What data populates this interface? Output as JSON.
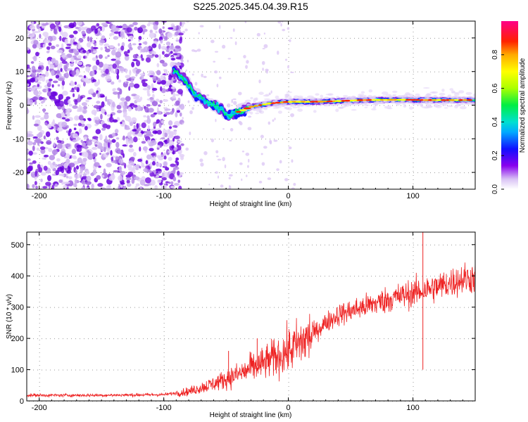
{
  "title": "S225.2025.345.04.39.R15",
  "colors": {
    "line": "#ee2222",
    "frame": "#000000",
    "grid_dot": "#999999"
  },
  "chart_data": [
    {
      "type": "heatmap",
      "xlabel": "Height of straight line (km)",
      "ylabel": "Frequency (Hz)",
      "xlim": [
        -210,
        150
      ],
      "ylim": [
        -25,
        25
      ],
      "xticks": [
        -200,
        -100,
        0,
        100
      ],
      "xtick_labels": [
        "-200",
        "-100",
        "0",
        "100"
      ],
      "yticks": [
        -20,
        -10,
        0,
        10,
        20
      ],
      "ytick_labels": [
        "-20",
        "-10",
        "0",
        "10",
        "20"
      ],
      "ridge": [
        {
          "x": -90,
          "y": 10
        },
        {
          "x": -82,
          "y": 7
        },
        {
          "x": -75,
          "y": 3
        },
        {
          "x": -65,
          "y": 1
        },
        {
          "x": -55,
          "y": -1
        },
        {
          "x": -48,
          "y": -3
        },
        {
          "x": -40,
          "y": -2
        },
        {
          "x": -30,
          "y": -0.5
        },
        {
          "x": -15,
          "y": 0.5
        },
        {
          "x": 0,
          "y": 1
        },
        {
          "x": 20,
          "y": 1
        },
        {
          "x": 40,
          "y": 1.2
        },
        {
          "x": 60,
          "y": 1.5
        },
        {
          "x": 90,
          "y": 1.6
        },
        {
          "x": 110,
          "y": 1.5
        },
        {
          "x": 150,
          "y": 1.5
        }
      ],
      "colorbar": {
        "label": "Normalized spectral amplitude",
        "range": [
          0,
          1
        ],
        "ticks": [
          0.0,
          0.2,
          0.4,
          0.6,
          0.8
        ],
        "tick_labels": [
          "0.0",
          "0.2",
          "0.4",
          "0.6",
          "0.8"
        ]
      }
    },
    {
      "type": "line",
      "xlabel": "Height of straight line (km)",
      "ylabel": "SNR (10 * v/v)",
      "xlim": [
        -210,
        150
      ],
      "ylim": [
        0,
        540
      ],
      "xticks": [
        -200,
        -100,
        0,
        100
      ],
      "xtick_labels": [
        "-200",
        "-100",
        "0",
        "100"
      ],
      "yticks": [
        0,
        100,
        200,
        300,
        400,
        500
      ],
      "ytick_labels": [
        "0",
        "100",
        "200",
        "300",
        "400",
        "500"
      ],
      "trend": [
        {
          "x": -210,
          "y": 18
        },
        {
          "x": -150,
          "y": 18
        },
        {
          "x": -100,
          "y": 20
        },
        {
          "x": -80,
          "y": 30
        },
        {
          "x": -60,
          "y": 55
        },
        {
          "x": -40,
          "y": 85
        },
        {
          "x": -20,
          "y": 120
        },
        {
          "x": 0,
          "y": 160
        },
        {
          "x": 10,
          "y": 185
        },
        {
          "x": 20,
          "y": 215
        },
        {
          "x": 30,
          "y": 250
        },
        {
          "x": 40,
          "y": 275
        },
        {
          "x": 60,
          "y": 300
        },
        {
          "x": 80,
          "y": 325
        },
        {
          "x": 100,
          "y": 345
        },
        {
          "x": 120,
          "y": 365
        },
        {
          "x": 140,
          "y": 390
        },
        {
          "x": 150,
          "y": 395
        }
      ],
      "spikes": [
        {
          "x": -48,
          "y": 160
        },
        {
          "x": -30,
          "y": 155
        },
        {
          "x": -25,
          "y": 200
        },
        {
          "x": 108,
          "y": 540
        },
        {
          "x": 108,
          "y": 100
        }
      ]
    }
  ]
}
